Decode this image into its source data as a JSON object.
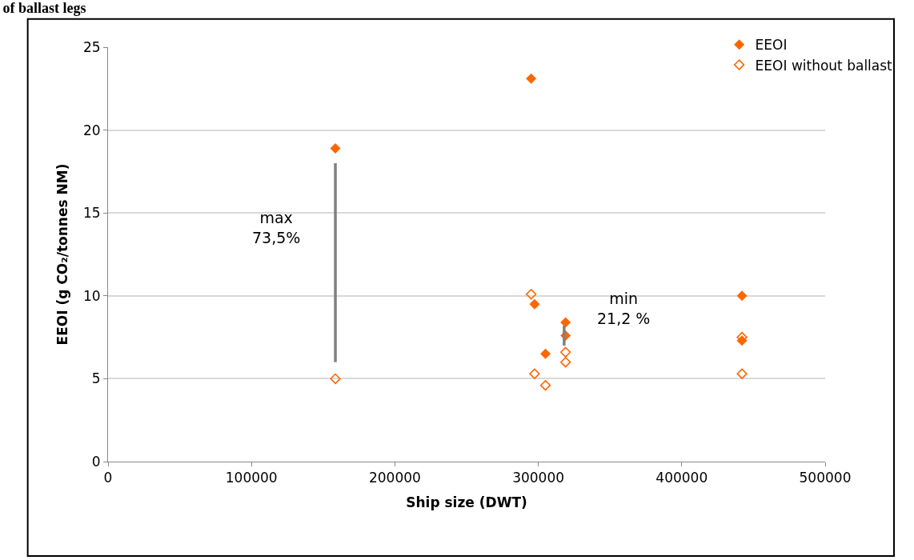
{
  "chart_data": {
    "type": "scatter",
    "title": "of ballast legs",
    "xlabel": "Ship size (DWT)",
    "ylabel": "EEOI (g CO₂/tonnes NM)",
    "xlim": [
      0,
      500000
    ],
    "xticks": [
      0,
      100000,
      200000,
      300000,
      400000,
      500000
    ],
    "ylim": [
      0,
      25
    ],
    "yticks": [
      0,
      5,
      10,
      15,
      20,
      25
    ],
    "grid": "y",
    "legend": "top right",
    "series": [
      {
        "name": "EEOI",
        "color": "#ff6600",
        "marker": "diamond",
        "x": [
          158500,
          295000,
          297400,
          305000,
          319000,
          319000,
          442000,
          442000
        ],
        "values": [
          18.9,
          23.1,
          9.5,
          6.5,
          8.4,
          7.6,
          10.0,
          7.3
        ]
      },
      {
        "name": "EEOI without ballast",
        "color": "#ff6600",
        "marker": "diamond",
        "x": [
          158500,
          295000,
          297400,
          305000,
          319000,
          319000,
          442000,
          442000
        ],
        "values": [
          5.0,
          10.1,
          5.3,
          4.6,
          6.6,
          6.0,
          7.5,
          5.3
        ]
      },
      {
        "type": "line",
        "color": "#808080",
        "marker": "none",
        "x": [
          158500,
          158500
        ],
        "values": [
          18.0,
          6.0
        ]
      },
      {
        "type": "line",
        "color": "#808080",
        "marker": "none",
        "x": [
          318000,
          318000
        ],
        "values": [
          8.2,
          7.0
        ]
      }
    ],
    "annotations": [
      "max\n73,5%",
      "min\n21,2 %"
    ]
  }
}
